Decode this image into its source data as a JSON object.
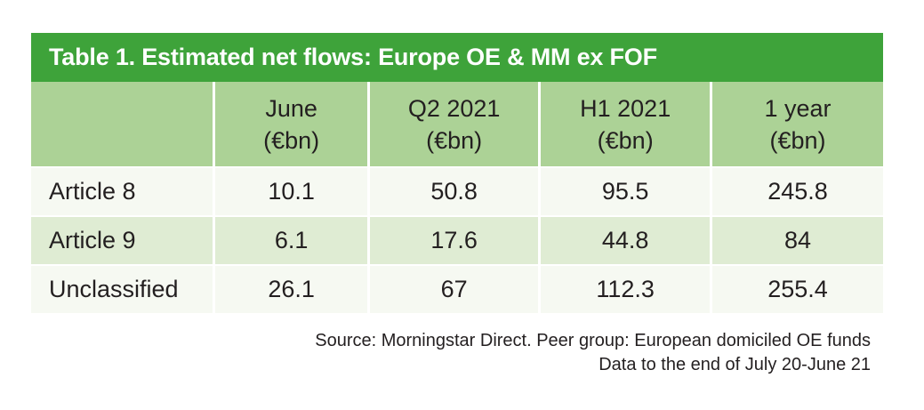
{
  "title": "Table 1. Estimated net flows: Europe OE & MM ex FOF",
  "colors": {
    "title_bar_bg": "#3ea33a",
    "title_text": "#ffffff",
    "header_bg": "#acd296",
    "row_light_bg": "#f6f9f2",
    "row_shaded_bg": "#dfecd3",
    "body_text": "#231f20",
    "separator": "#ffffff"
  },
  "table": {
    "columns": [
      {
        "label": "",
        "unit": ""
      },
      {
        "label": "June",
        "unit": "(€bn)"
      },
      {
        "label": "Q2 2021",
        "unit": "(€bn)"
      },
      {
        "label": "H1 2021",
        "unit": "(€bn)"
      },
      {
        "label": "1 year",
        "unit": "(€bn)"
      }
    ],
    "rows": [
      {
        "label": "Article 8",
        "values": [
          "10.1",
          "50.8",
          "95.5",
          "245.8"
        ]
      },
      {
        "label": "Article 9",
        "values": [
          "6.1",
          "17.6",
          "44.8",
          "84"
        ]
      },
      {
        "label": "Unclassified",
        "values": [
          "26.1",
          "67",
          "112.3",
          "255.4"
        ]
      }
    ]
  },
  "footnote": {
    "line1": "Source: Morningstar Direct. Peer group: European domiciled OE funds",
    "line2": "Data to the end of July 20-June 21"
  },
  "chart_data": {
    "type": "table",
    "title": "Table 1. Estimated net flows: Europe OE & MM ex FOF",
    "categories": [
      "Article 8",
      "Article 9",
      "Unclassified"
    ],
    "series": [
      {
        "name": "June (€bn)",
        "values": [
          10.1,
          6.1,
          26.1
        ]
      },
      {
        "name": "Q2 2021 (€bn)",
        "values": [
          50.8,
          17.6,
          67
        ]
      },
      {
        "name": "H1 2021 (€bn)",
        "values": [
          95.5,
          44.8,
          112.3
        ]
      },
      {
        "name": "1 year (€bn)",
        "values": [
          245.8,
          84,
          255.4
        ]
      }
    ],
    "annotations": [
      "Source: Morningstar Direct. Peer group: European domiciled OE funds",
      "Data to the end of July 20-June 21"
    ]
  }
}
